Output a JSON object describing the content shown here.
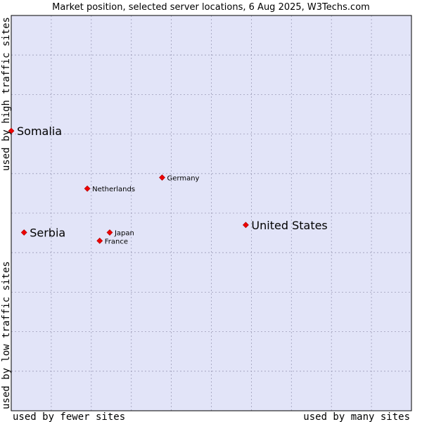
{
  "chart_data": {
    "type": "scatter",
    "title": "Market position, selected server locations, 6 Aug 2025, W3Techs.com",
    "xlabel_left": "used by fewer sites",
    "xlabel_right": "used by many sites",
    "ylabel_bottom": "used by low traffic sites",
    "ylabel_top": "used by high traffic sites",
    "xlim": [
      0,
      100
    ],
    "ylim": [
      0,
      100
    ],
    "grid": true,
    "colors": {
      "plot_bg": "#e2e4f8",
      "grid": "#9c9cb8",
      "frame": "#000000",
      "marker": "#ee0000",
      "marker_edge": "#aa0000"
    },
    "points": [
      {
        "name": "Somalia",
        "x": 0.0,
        "y": 70.8,
        "emphasis": "large"
      },
      {
        "name": "Germany",
        "x": 37.7,
        "y": 59.0,
        "emphasis": "small"
      },
      {
        "name": "Netherlands",
        "x": 19.0,
        "y": 56.2,
        "emphasis": "small"
      },
      {
        "name": "United States",
        "x": 58.6,
        "y": 47.0,
        "emphasis": "large"
      },
      {
        "name": "Serbia",
        "x": 3.2,
        "y": 45.1,
        "emphasis": "large"
      },
      {
        "name": "Japan",
        "x": 24.6,
        "y": 45.1,
        "emphasis": "small"
      },
      {
        "name": "France",
        "x": 22.1,
        "y": 43.0,
        "emphasis": "small"
      }
    ]
  }
}
